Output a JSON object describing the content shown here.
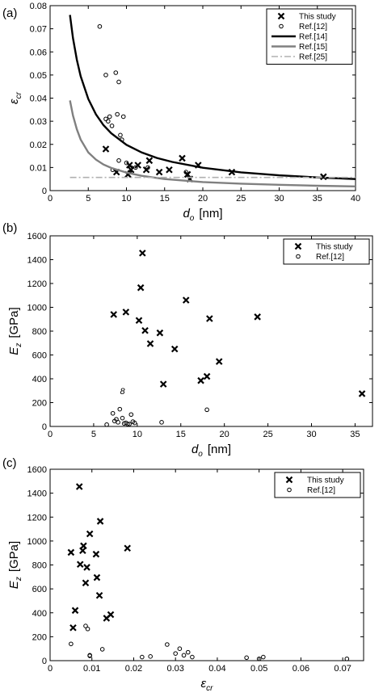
{
  "chart_data": [
    {
      "panel": "(a)",
      "type": "scatter",
      "xlabel_sym": "d",
      "xlabel_sub": "o",
      "xlabel_unit": "[nm]",
      "ylabel_sym": "ε",
      "ylabel_sub": "cr",
      "ylabel_unit": "",
      "xlim": [
        0,
        40
      ],
      "ylim": [
        0,
        0.08
      ],
      "xticks": [
        "0",
        "5",
        "10",
        "15",
        "20",
        "25",
        "30",
        "35",
        "40"
      ],
      "yticks": [
        "0",
        "0.01",
        "0.02",
        "0.03",
        "0.04",
        "0.05",
        "0.06",
        "0.07",
        "0.08"
      ],
      "legend_position": "top-right",
      "series": [
        {
          "name": "This study",
          "marker": "x",
          "points": [
            [
              7.3,
              0.018
            ],
            [
              8.7,
              0.008
            ],
            [
              10.2,
              0.007
            ],
            [
              10.4,
              0.011
            ],
            [
              10.6,
              0.009
            ],
            [
              11.5,
              0.011
            ],
            [
              12.6,
              0.009
            ],
            [
              13,
              0.013
            ],
            [
              14.3,
              0.008
            ],
            [
              15.6,
              0.009
            ],
            [
              17.3,
              0.014
            ],
            [
              18,
              0.007
            ],
            [
              18.3,
              0.005
            ],
            [
              19.4,
              0.011
            ],
            [
              23.8,
              0.008
            ],
            [
              35.8,
              0.006
            ]
          ]
        },
        {
          "name": "Ref.[12]",
          "marker": "o",
          "points": [
            [
              6.5,
              0.071
            ],
            [
              7.3,
              0.05
            ],
            [
              7.3,
              0.031
            ],
            [
              7.6,
              0.03
            ],
            [
              7.8,
              0.032
            ],
            [
              8.1,
              0.028
            ],
            [
              8.6,
              0.051
            ],
            [
              8.8,
              0.033
            ],
            [
              9.0,
              0.047
            ],
            [
              9.2,
              0.024
            ],
            [
              9.4,
              0.022
            ],
            [
              9.6,
              0.032
            ],
            [
              8.2,
              0.009
            ],
            [
              9.0,
              0.013
            ],
            [
              10.0,
              0.012
            ],
            [
              10.4,
              0.008
            ],
            [
              10.6,
              0.01
            ],
            [
              11.2,
              0.01
            ],
            [
              12.8,
              0.01
            ],
            [
              17.8,
              0.008
            ]
          ]
        },
        {
          "name": "Ref.[14]",
          "line": "solid",
          "color": "#000000",
          "points": [
            [
              2.6,
              0.076
            ],
            [
              3,
              0.066
            ],
            [
              3.5,
              0.0566
            ],
            [
              4,
              0.0495
            ],
            [
              5,
              0.0396
            ],
            [
              6,
              0.033
            ],
            [
              7,
              0.0283
            ],
            [
              8,
              0.0248
            ],
            [
              10,
              0.0198
            ],
            [
              12,
              0.0165
            ],
            [
              14,
              0.0141
            ],
            [
              16,
              0.0124
            ],
            [
              20,
              0.0099
            ],
            [
              25,
              0.0079
            ],
            [
              30,
              0.0066
            ],
            [
              35,
              0.0057
            ],
            [
              40,
              0.005
            ]
          ]
        },
        {
          "name": "Ref.[15]",
          "line": "solid",
          "color": "#808080",
          "points": [
            [
              2.6,
              0.039
            ],
            [
              3,
              0.0325
            ],
            [
              3.5,
              0.0265
            ],
            [
              4,
              0.0221
            ],
            [
              5,
              0.0165
            ],
            [
              6,
              0.0134
            ],
            [
              7,
              0.0113
            ],
            [
              8,
              0.0098
            ],
            [
              10,
              0.0078
            ],
            [
              12,
              0.0064
            ],
            [
              15,
              0.005
            ],
            [
              20,
              0.0037
            ],
            [
              25,
              0.003
            ],
            [
              30,
              0.0025
            ],
            [
              35,
              0.0021
            ],
            [
              40,
              0.0018
            ]
          ]
        },
        {
          "name": "Ref.[25]",
          "line": "dashdot",
          "color": "#b0b0b0",
          "points": [
            [
              2.6,
              0.0057
            ],
            [
              40,
              0.0057
            ]
          ]
        }
      ]
    },
    {
      "panel": "(b)",
      "type": "scatter",
      "xlabel_sym": "d",
      "xlabel_sub": "o",
      "xlabel_unit": "[nm]",
      "ylabel_sym": "E",
      "ylabel_sub": "z",
      "ylabel_unit": "[GPa]",
      "xlim": [
        0,
        37
      ],
      "ylim": [
        0,
        1600
      ],
      "xticks": [
        "0",
        "5",
        "10",
        "15",
        "20",
        "25",
        "30",
        "35"
      ],
      "yticks": [
        "0",
        "200",
        "400",
        "600",
        "800",
        "1000",
        "1200",
        "1400",
        "1600"
      ],
      "legend_position": "top-right",
      "annotation": "8",
      "series": [
        {
          "name": "This study",
          "marker": "x",
          "points": [
            [
              7.3,
              940
            ],
            [
              8.7,
              960
            ],
            [
              10.2,
              890
            ],
            [
              10.4,
              1165
            ],
            [
              10.6,
              1455
            ],
            [
              10.9,
              805
            ],
            [
              11.5,
              695
            ],
            [
              12.6,
              785
            ],
            [
              13,
              355
            ],
            [
              14.3,
              650
            ],
            [
              15.6,
              1060
            ],
            [
              17.3,
              385
            ],
            [
              18,
              420
            ],
            [
              18.3,
              905
            ],
            [
              19.4,
              545
            ],
            [
              23.8,
              920
            ],
            [
              35.8,
              275
            ]
          ]
        },
        {
          "name": "Ref.[12]",
          "marker": "o",
          "points": [
            [
              6.5,
              15
            ],
            [
              7.2,
              110
            ],
            [
              7.4,
              45
            ],
            [
              7.6,
              60
            ],
            [
              7.8,
              35
            ],
            [
              8.0,
              145
            ],
            [
              8.3,
              70
            ],
            [
              8.5,
              25
            ],
            [
              8.7,
              30
            ],
            [
              8.9,
              20
            ],
            [
              9.1,
              20
            ],
            [
              9.3,
              100
            ],
            [
              9.5,
              40
            ],
            [
              9.7,
              30
            ],
            [
              12.8,
              35
            ],
            [
              18.0,
              140
            ]
          ]
        }
      ]
    },
    {
      "panel": "(c)",
      "type": "scatter",
      "xlabel_sym": "ε",
      "xlabel_sub": "cr",
      "xlabel_unit": "",
      "ylabel_sym": "E",
      "ylabel_sub": "z",
      "ylabel_unit": "[GPa]",
      "xlim": [
        0,
        0.075
      ],
      "ylim": [
        0,
        1600
      ],
      "xticks": [
        "0",
        "0.01",
        "0.02",
        "0.03",
        "0.04",
        "0.05",
        "0.06",
        "0.07"
      ],
      "yticks": [
        "0",
        "200",
        "400",
        "600",
        "800",
        "1000",
        "1200",
        "1400",
        "1600"
      ],
      "legend_position": "top-right",
      "series": [
        {
          "name": "This study",
          "marker": "x",
          "points": [
            [
              0.0055,
              275
            ],
            [
              0.006,
              420
            ],
            [
              0.007,
              1455
            ],
            [
              0.005,
              905
            ],
            [
              0.0072,
              805
            ],
            [
              0.0078,
              920
            ],
            [
              0.0085,
              650
            ],
            [
              0.0088,
              780
            ],
            [
              0.008,
              960
            ],
            [
              0.0095,
              1060
            ],
            [
              0.011,
              890
            ],
            [
              0.0112,
              695
            ],
            [
              0.0118,
              545
            ],
            [
              0.012,
              1165
            ],
            [
              0.0135,
              355
            ],
            [
              0.0145,
              385
            ],
            [
              0.0185,
              940
            ]
          ]
        },
        {
          "name": "Ref.[12]",
          "marker": "o",
          "points": [
            [
              0.005,
              140
            ],
            [
              0.0085,
              290
            ],
            [
              0.009,
              265
            ],
            [
              0.0095,
              45
            ],
            [
              0.0095,
              40
            ],
            [
              0.0125,
              95
            ],
            [
              0.022,
              30
            ],
            [
              0.024,
              35
            ],
            [
              0.028,
              135
            ],
            [
              0.03,
              60
            ],
            [
              0.031,
              100
            ],
            [
              0.032,
              45
            ],
            [
              0.033,
              70
            ],
            [
              0.034,
              30
            ],
            [
              0.047,
              25
            ],
            [
              0.05,
              15
            ],
            [
              0.051,
              30
            ],
            [
              0.071,
              15
            ]
          ]
        }
      ]
    }
  ]
}
